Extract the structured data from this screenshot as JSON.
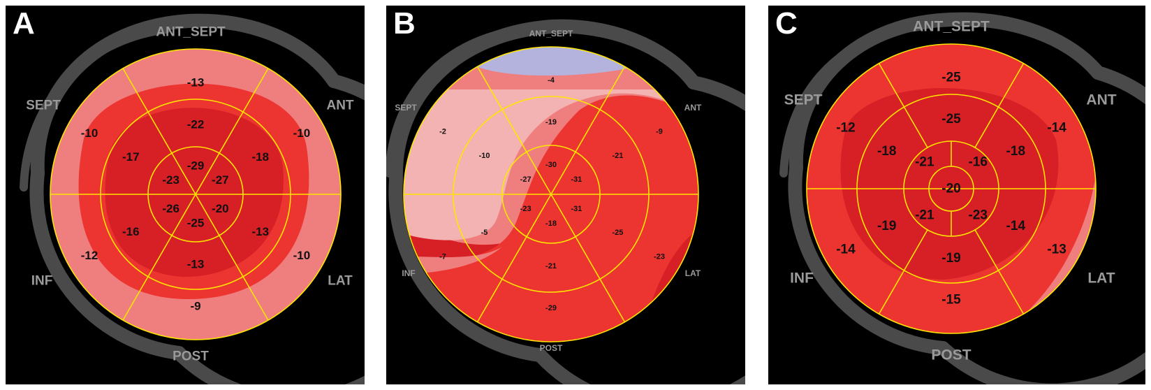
{
  "figure": {
    "type": "bullseye-strain-maps",
    "panels": [
      {
        "letter": "A",
        "labels": {
          "top": "ANT_SEPT",
          "upper_left": "SEPT",
          "upper_right": "ANT",
          "lower_left": "INF",
          "lower_right": "LAT",
          "bottom": "POST"
        },
        "apex_split": true,
        "segments": {
          "basal": [
            "-13",
            "-10",
            "-10",
            "-9",
            "-12",
            "-10"
          ],
          "mid": [
            "-22",
            "-18",
            "-13",
            "-13",
            "-16",
            "-17"
          ],
          "apical": [
            "-29",
            "-27",
            "-20",
            "-25",
            "-26",
            "-23"
          ]
        }
      },
      {
        "letter": "B",
        "labels": {
          "top": "ANT_SEPT",
          "upper_left": "SEPT",
          "upper_right": "ANT",
          "lower_left": "INF",
          "lower_right": "LAT",
          "bottom": "POST"
        },
        "apex_split": true,
        "segments": {
          "basal": [
            "-4",
            "-9",
            "-23",
            "-29",
            "-7",
            "-2"
          ],
          "mid": [
            "-19",
            "-21",
            "-25",
            "-21",
            "-5",
            "-10"
          ],
          "apical": [
            "-30",
            "-31",
            "-31",
            "-18",
            "-23",
            "-27"
          ]
        }
      },
      {
        "letter": "C",
        "labels": {
          "top": "ANT_SEPT",
          "upper_left": "SEPT",
          "upper_right": "ANT",
          "lower_left": "INF",
          "lower_right": "LAT",
          "bottom": "POST"
        },
        "apex_split": false,
        "segments": {
          "basal": [
            "-25",
            "-14",
            "-13",
            "-15",
            "-14",
            "-12"
          ],
          "mid": [
            "-25",
            "-18",
            "-14",
            "-19",
            "-19",
            "-18"
          ],
          "apical": [
            "-21",
            "-16",
            "-23",
            "-21"
          ],
          "apex": "-20"
        }
      }
    ]
  },
  "colors": {
    "background": "#000000",
    "ring": "#4a4a4a",
    "grid": "#ffe500",
    "label": "#9a9a9a",
    "value": "#111111",
    "letter": "#ffffff",
    "deep_red": "#d71f26",
    "red": "#ec3431",
    "salmon": "#ef7f7f",
    "light_pink": "#f4b3b3",
    "lavender": "#b3b3dd"
  }
}
